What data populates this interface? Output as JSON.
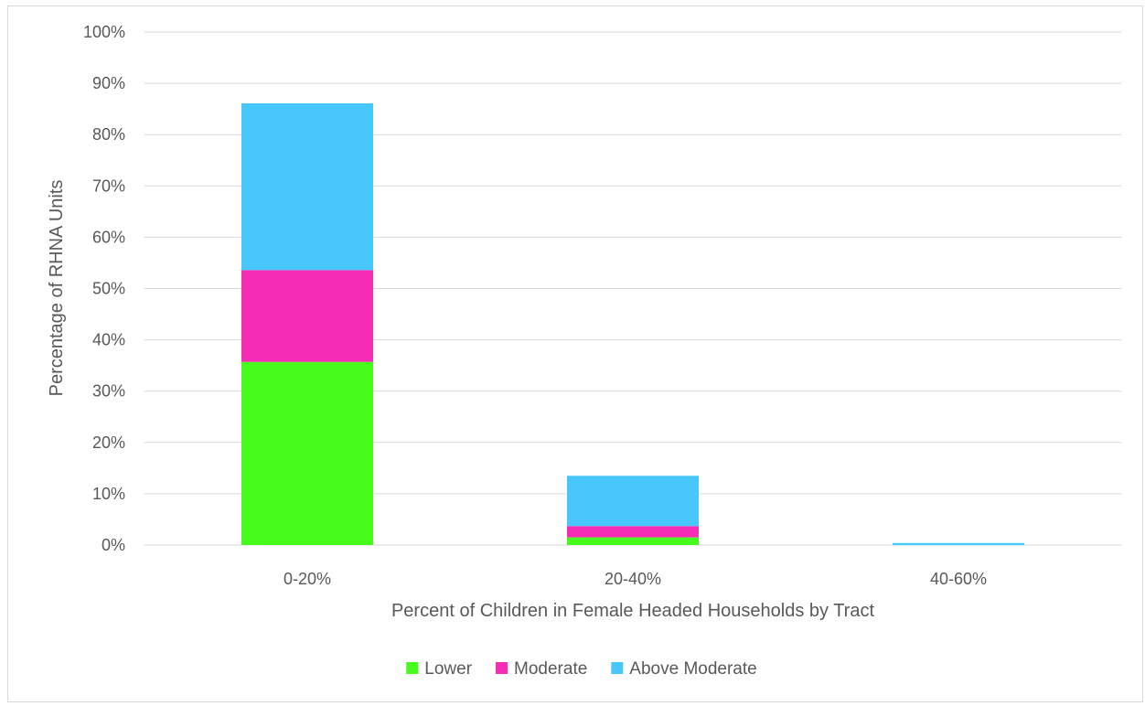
{
  "chart_data": {
    "type": "bar",
    "stacked": true,
    "title": "",
    "xlabel": "Percent of Children in Female Headed Households by Tract",
    "ylabel": "Percentage of RHNA Units",
    "categories": [
      "0-20%",
      "20-40%",
      "40-60%"
    ],
    "series": [
      {
        "name": "Lower",
        "color": "#47fb1c",
        "values": [
          35.7,
          1.5,
          0.0
        ]
      },
      {
        "name": "Moderate",
        "color": "#f42db4",
        "values": [
          17.9,
          2.2,
          0.0
        ]
      },
      {
        "name": "Above Moderate",
        "color": "#47c7fc",
        "values": [
          32.5,
          9.8,
          0.4
        ]
      }
    ],
    "ylim": [
      0,
      100
    ],
    "yticks": [
      0,
      10,
      20,
      30,
      40,
      50,
      60,
      70,
      80,
      90,
      100
    ],
    "ytick_labels": [
      "0%",
      "10%",
      "20%",
      "30%",
      "40%",
      "50%",
      "60%",
      "70%",
      "80%",
      "90%",
      "100%"
    ],
    "grid": true,
    "legend_position": "bottom"
  }
}
